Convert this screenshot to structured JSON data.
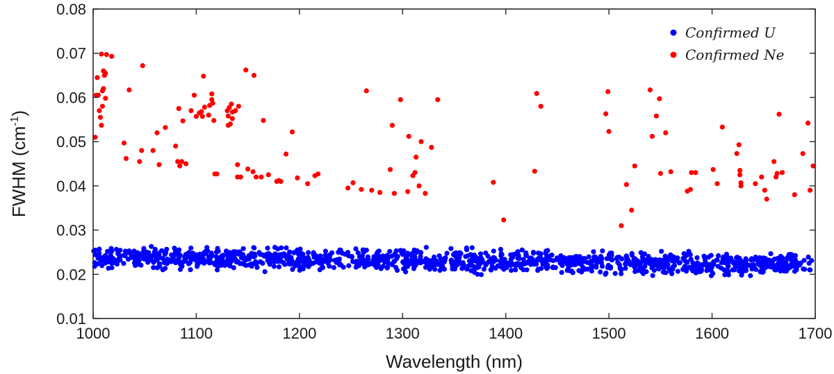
{
  "chart_data": {
    "type": "scatter",
    "xlabel": "Wavelength (nm)",
    "ylabel": {
      "base": "FWHM (cm",
      "sup": "-1",
      "close": ")"
    },
    "xlim": [
      1000,
      1700
    ],
    "ylim": [
      0.01,
      0.08
    ],
    "xticks": [
      1000,
      1100,
      1200,
      1300,
      1400,
      1500,
      1600,
      1700
    ],
    "yticks": [
      "0.01",
      "0.02",
      "0.03",
      "0.04",
      "0.05",
      "0.06",
      "0.07",
      "0.08"
    ],
    "grid": false,
    "legend_position": "top-right",
    "series": [
      {
        "name": "Confirmed U",
        "color": "#0000ff",
        "distribution": {
          "n": 1300,
          "x_range": [
            1000,
            1697
          ],
          "center_start": 0.0238,
          "center_end": 0.0222,
          "spread": 0.0026
        },
        "points": []
      },
      {
        "name": "Confirmed Ne",
        "color": "#ff0000",
        "points": [
          [
            1002,
            0.051
          ],
          [
            1003,
            0.0605
          ],
          [
            1004,
            0.0645
          ],
          [
            1005,
            0.0605
          ],
          [
            1006,
            0.057
          ],
          [
            1007,
            0.0555
          ],
          [
            1008,
            0.0698
          ],
          [
            1009,
            0.0615
          ],
          [
            1010,
            0.062
          ],
          [
            1010,
            0.066
          ],
          [
            1011,
            0.065
          ],
          [
            1012,
            0.0655
          ],
          [
            1013,
            0.0697
          ],
          [
            1009,
            0.058
          ],
          [
            1008,
            0.0537
          ],
          [
            1012,
            0.0598
          ],
          [
            1018,
            0.0693
          ],
          [
            1030,
            0.0497
          ],
          [
            1032,
            0.0462
          ],
          [
            1035,
            0.0617
          ],
          [
            1045,
            0.0455
          ],
          [
            1047,
            0.048
          ],
          [
            1048,
            0.0672
          ],
          [
            1058,
            0.048
          ],
          [
            1062,
            0.052
          ],
          [
            1064,
            0.0448
          ],
          [
            1070,
            0.0532
          ],
          [
            1080,
            0.049
          ],
          [
            1082,
            0.0455
          ],
          [
            1083,
            0.0575
          ],
          [
            1084,
            0.0445
          ],
          [
            1086,
            0.0455
          ],
          [
            1087,
            0.0547
          ],
          [
            1090,
            0.045
          ],
          [
            1095,
            0.057
          ],
          [
            1098,
            0.0605
          ],
          [
            1100,
            0.0557
          ],
          [
            1103,
            0.0565
          ],
          [
            1105,
            0.0568
          ],
          [
            1106,
            0.0557
          ],
          [
            1107,
            0.0648
          ],
          [
            1108,
            0.0578
          ],
          [
            1112,
            0.056
          ],
          [
            1113,
            0.0582
          ],
          [
            1115,
            0.0595
          ],
          [
            1115,
            0.0608
          ],
          [
            1116,
            0.0587
          ],
          [
            1117,
            0.0548
          ],
          [
            1118,
            0.0427
          ],
          [
            1120,
            0.0427
          ],
          [
            1130,
            0.057
          ],
          [
            1131,
            0.0537
          ],
          [
            1131,
            0.0558
          ],
          [
            1132,
            0.0577
          ],
          [
            1133,
            0.054
          ],
          [
            1134,
            0.0585
          ],
          [
            1135,
            0.0567
          ],
          [
            1135,
            0.0552
          ],
          [
            1138,
            0.057
          ],
          [
            1140,
            0.0448
          ],
          [
            1141,
            0.058
          ],
          [
            1140,
            0.042
          ],
          [
            1143,
            0.042
          ],
          [
            1148,
            0.0662
          ],
          [
            1150,
            0.0438
          ],
          [
            1155,
            0.0432
          ],
          [
            1156,
            0.065
          ],
          [
            1158,
            0.042
          ],
          [
            1163,
            0.042
          ],
          [
            1165,
            0.0548
          ],
          [
            1170,
            0.0425
          ],
          [
            1178,
            0.041
          ],
          [
            1180,
            0.0412
          ],
          [
            1182,
            0.041
          ],
          [
            1187,
            0.0472
          ],
          [
            1193,
            0.0522
          ],
          [
            1198,
            0.0418
          ],
          [
            1208,
            0.0405
          ],
          [
            1215,
            0.0423
          ],
          [
            1218,
            0.0427
          ],
          [
            1247,
            0.0395
          ],
          [
            1252,
            0.0407
          ],
          [
            1260,
            0.0392
          ],
          [
            1265,
            0.0615
          ],
          [
            1270,
            0.039
          ],
          [
            1278,
            0.0385
          ],
          [
            1288,
            0.0437
          ],
          [
            1290,
            0.0537
          ],
          [
            1292,
            0.0383
          ],
          [
            1298,
            0.0595
          ],
          [
            1305,
            0.0387
          ],
          [
            1306,
            0.0512
          ],
          [
            1310,
            0.0423
          ],
          [
            1312,
            0.043
          ],
          [
            1313,
            0.0465
          ],
          [
            1316,
            0.04
          ],
          [
            1318,
            0.05
          ],
          [
            1322,
            0.0383
          ],
          [
            1328,
            0.0487
          ],
          [
            1334,
            0.0595
          ],
          [
            1388,
            0.0408
          ],
          [
            1398,
            0.0323
          ],
          [
            1428,
            0.0433
          ],
          [
            1430,
            0.0609
          ],
          [
            1434,
            0.058
          ],
          [
            1497,
            0.0563
          ],
          [
            1499,
            0.0613
          ],
          [
            1500,
            0.0523
          ],
          [
            1512,
            0.031
          ],
          [
            1517,
            0.0403
          ],
          [
            1522,
            0.0345
          ],
          [
            1525,
            0.0445
          ],
          [
            1540,
            0.0617
          ],
          [
            1542,
            0.0512
          ],
          [
            1546,
            0.0558
          ],
          [
            1549,
            0.0597
          ],
          [
            1550,
            0.0428
          ],
          [
            1555,
            0.052
          ],
          [
            1560,
            0.0432
          ],
          [
            1576,
            0.0388
          ],
          [
            1579,
            0.0392
          ],
          [
            1580,
            0.043
          ],
          [
            1584,
            0.043
          ],
          [
            1601,
            0.0437
          ],
          [
            1605,
            0.0405
          ],
          [
            1610,
            0.0533
          ],
          [
            1624,
            0.0473
          ],
          [
            1626,
            0.0493
          ],
          [
            1627,
            0.0435
          ],
          [
            1627,
            0.0425
          ],
          [
            1628,
            0.04
          ],
          [
            1628,
            0.0407
          ],
          [
            1642,
            0.0405
          ],
          [
            1648,
            0.042
          ],
          [
            1651,
            0.039
          ],
          [
            1653,
            0.037
          ],
          [
            1660,
            0.0455
          ],
          [
            1662,
            0.042
          ],
          [
            1663,
            0.0428
          ],
          [
            1665,
            0.0562
          ],
          [
            1668,
            0.043
          ],
          [
            1680,
            0.038
          ],
          [
            1688,
            0.0473
          ],
          [
            1693,
            0.0542
          ],
          [
            1695,
            0.039
          ],
          [
            1698,
            0.0445
          ]
        ]
      }
    ]
  }
}
